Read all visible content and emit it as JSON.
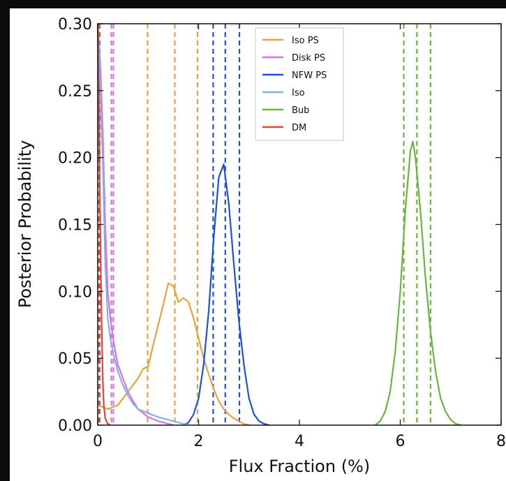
{
  "chart_data": {
    "type": "line",
    "title": "",
    "xlabel": "Flux Fraction (%)",
    "ylabel": "Posterior Probability",
    "xlim": [
      0,
      8
    ],
    "ylim": [
      0,
      0.3
    ],
    "xticks": [
      0,
      2,
      4,
      6,
      8
    ],
    "xtick_labels": [
      "0",
      "2",
      "4",
      "6",
      "8"
    ],
    "yticks": [
      0.0,
      0.05,
      0.1,
      0.15,
      0.2,
      0.25,
      0.3
    ],
    "ytick_labels": [
      "0.00",
      "0.05",
      "0.10",
      "0.15",
      "0.20",
      "0.25",
      "0.30"
    ],
    "grid": false,
    "legend_position": "top-center",
    "series": [
      {
        "name": "Iso PS",
        "color": "#E5A33A",
        "x": [
          0.0,
          0.2,
          0.4,
          0.6,
          0.8,
          0.9,
          1.0,
          1.1,
          1.2,
          1.3,
          1.4,
          1.5,
          1.6,
          1.7,
          1.8,
          1.9,
          2.0,
          2.1,
          2.2,
          2.3,
          2.4,
          2.5,
          2.6,
          2.7,
          2.8,
          2.9,
          3.0
        ],
        "y": [
          0.015,
          0.012,
          0.015,
          0.025,
          0.035,
          0.042,
          0.044,
          0.06,
          0.075,
          0.09,
          0.106,
          0.104,
          0.092,
          0.095,
          0.092,
          0.08,
          0.065,
          0.05,
          0.038,
          0.027,
          0.018,
          0.012,
          0.008,
          0.005,
          0.003,
          0.001,
          0.0
        ],
        "vlines": [
          0.99,
          1.53,
          1.98
        ]
      },
      {
        "name": "Disk PS",
        "color": "#D870E6",
        "x": [
          0.0,
          0.05,
          0.1,
          0.15,
          0.2,
          0.25,
          0.3,
          0.35,
          0.4,
          0.5,
          0.6,
          0.7,
          0.8,
          1.0,
          1.2,
          1.5
        ],
        "y": [
          0.3,
          0.27,
          0.22,
          0.15,
          0.1,
          0.08,
          0.066,
          0.055,
          0.045,
          0.035,
          0.025,
          0.018,
          0.012,
          0.006,
          0.003,
          0.0
        ],
        "vlines": [
          0.27,
          0.31
        ]
      },
      {
        "name": "NFW PS",
        "color": "#1F4FE0",
        "x": [
          1.7,
          1.8,
          1.9,
          2.0,
          2.1,
          2.2,
          2.3,
          2.4,
          2.5,
          2.6,
          2.7,
          2.8,
          2.9,
          3.0,
          3.1,
          3.2,
          3.3,
          3.4
        ],
        "y": [
          0.0,
          0.002,
          0.008,
          0.02,
          0.045,
          0.085,
          0.14,
          0.185,
          0.195,
          0.165,
          0.12,
          0.078,
          0.045,
          0.02,
          0.008,
          0.003,
          0.001,
          0.0
        ],
        "vlines": [
          2.29,
          2.53,
          2.81
        ]
      },
      {
        "name": "Iso",
        "color": "#88AEE8",
        "x": [
          0.0,
          0.1,
          0.15,
          0.2,
          0.25,
          0.3,
          0.4,
          0.5,
          0.6,
          0.7,
          0.8,
          1.0,
          1.2,
          1.4,
          1.6,
          1.8
        ],
        "y": [
          0.3,
          0.2,
          0.12,
          0.08,
          0.065,
          0.055,
          0.04,
          0.03,
          0.022,
          0.016,
          0.012,
          0.009,
          0.006,
          0.004,
          0.002,
          0.0
        ]
      },
      {
        "name": "Bub",
        "color": "#6DB33F",
        "x": [
          5.5,
          5.6,
          5.7,
          5.8,
          5.9,
          6.0,
          6.1,
          6.2,
          6.25,
          6.3,
          6.4,
          6.5,
          6.6,
          6.7,
          6.8,
          6.9,
          7.0,
          7.1,
          7.2
        ],
        "y": [
          0.0,
          0.003,
          0.01,
          0.025,
          0.055,
          0.1,
          0.16,
          0.205,
          0.212,
          0.2,
          0.16,
          0.11,
          0.07,
          0.04,
          0.02,
          0.01,
          0.004,
          0.001,
          0.0
        ],
        "vlines": [
          6.07,
          6.33,
          6.6
        ]
      },
      {
        "name": "DM",
        "color": "#E0443A",
        "x": [
          0.0,
          0.02,
          0.04,
          0.06,
          0.08,
          0.1,
          0.12,
          0.15,
          0.2,
          0.25
        ],
        "y": [
          0.3,
          0.25,
          0.18,
          0.12,
          0.07,
          0.035,
          0.015,
          0.005,
          0.001,
          0.0
        ],
        "vlines": [
          0.01,
          0.04
        ]
      }
    ]
  }
}
